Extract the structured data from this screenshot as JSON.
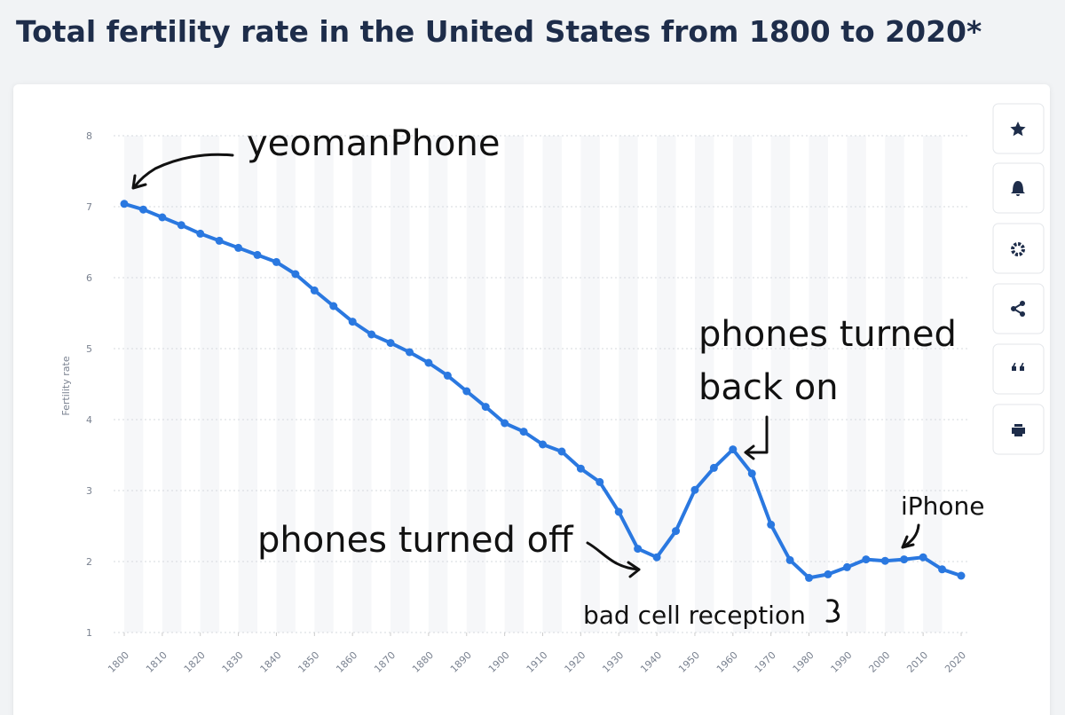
{
  "chart_data": {
    "type": "line",
    "title": "Total fertility rate in the United States from 1800 to 2020*",
    "y_label": "Fertility rate",
    "x": [
      1800,
      1805,
      1810,
      1815,
      1820,
      1825,
      1830,
      1835,
      1840,
      1845,
      1850,
      1855,
      1860,
      1865,
      1870,
      1875,
      1880,
      1885,
      1890,
      1895,
      1900,
      1905,
      1910,
      1915,
      1920,
      1925,
      1930,
      1935,
      1940,
      1945,
      1950,
      1955,
      1960,
      1965,
      1970,
      1975,
      1980,
      1985,
      1990,
      1995,
      2000,
      2005,
      2010,
      2015,
      2020
    ],
    "values": [
      7.04,
      6.96,
      6.85,
      6.74,
      6.62,
      6.52,
      6.42,
      6.32,
      6.22,
      6.05,
      5.82,
      5.6,
      5.38,
      5.2,
      5.08,
      4.95,
      4.8,
      4.62,
      4.4,
      4.18,
      3.95,
      3.83,
      3.65,
      3.55,
      3.31,
      3.12,
      2.7,
      2.18,
      2.06,
      2.43,
      3.01,
      3.32,
      3.58,
      3.24,
      2.52,
      2.02,
      1.77,
      1.82,
      1.92,
      2.03,
      2.01,
      2.03,
      2.06,
      1.89,
      1.8
    ],
    "color": "#2a78e0",
    "xlim": [
      1800,
      2020
    ],
    "xticks": [
      1800,
      1810,
      1820,
      1830,
      1840,
      1850,
      1860,
      1870,
      1880,
      1890,
      1900,
      1910,
      1920,
      1930,
      1940,
      1950,
      1960,
      1970,
      1980,
      1990,
      2000,
      2010,
      2020
    ],
    "ylim": [
      1,
      8
    ],
    "yticks": [
      1,
      2,
      3,
      4,
      5,
      6,
      7,
      8
    ],
    "grid": true,
    "annotations": [
      "yeomanPhone",
      "phones turned",
      "back on",
      "phones turned off",
      "bad cell reception",
      "iPhone"
    ]
  }
}
